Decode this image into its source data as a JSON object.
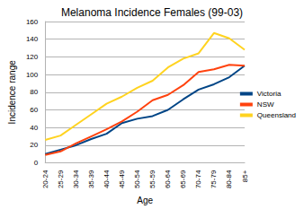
{
  "chart_data": {
    "type": "line",
    "title": "Melanoma Incidence Females (99-03)",
    "x_label": "Age",
    "y_label": "Incidence range",
    "categories": [
      "20-24",
      "25-29",
      "30-34",
      "35-39",
      "40-44",
      "45-49",
      "50-54",
      "55-59",
      "60-64",
      "65-69",
      "70-74",
      "75-79",
      "80-84",
      "85+"
    ],
    "series": [
      {
        "name": "Victoria",
        "color": "#004586",
        "values": [
          10,
          15,
          20,
          27,
          33,
          45,
          50,
          53,
          60,
          72,
          83,
          89,
          97,
          110
        ]
      },
      {
        "name": "NSW",
        "color": "#ff420e",
        "values": [
          9,
          13,
          22,
          30,
          38,
          47,
          58,
          71,
          77,
          88,
          103,
          106,
          111,
          110
        ]
      },
      {
        "name": "Queensland",
        "color": "#ffd320",
        "values": [
          26,
          31,
          43,
          55,
          67,
          75,
          85,
          93,
          108,
          118,
          124,
          147,
          141,
          128
        ]
      }
    ],
    "ylim": [
      0,
      160
    ],
    "yticks": [
      0,
      20,
      40,
      60,
      80,
      100,
      120,
      140,
      160
    ],
    "grid": true,
    "legend": "right"
  }
}
